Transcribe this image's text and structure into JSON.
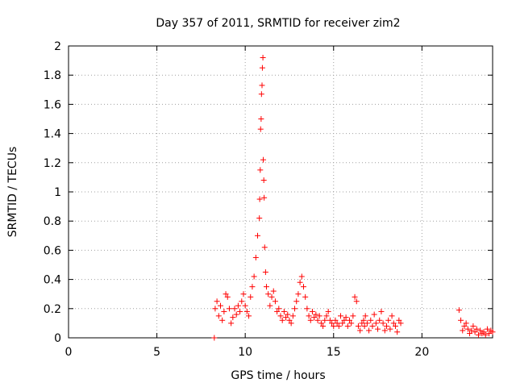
{
  "chart_data": {
    "type": "scatter",
    "title": "Day 357 of 2011, SRMTID for receiver zim2",
    "xlabel": "GPS time / hours",
    "ylabel": "SRMTID / TECUs",
    "xlim": [
      0,
      24
    ],
    "ylim": [
      0,
      2
    ],
    "xticks": [
      0,
      5,
      10,
      15,
      20
    ],
    "xtick_labels": [
      "0",
      "5",
      "10",
      "15",
      "20"
    ],
    "yticks": [
      0,
      0.2,
      0.4,
      0.6,
      0.8,
      1,
      1.2,
      1.4,
      1.6,
      1.8,
      2
    ],
    "ytick_labels": [
      "0",
      "0.2",
      "0.4",
      "0.6",
      "0.8",
      "1",
      "1.2",
      "1.4",
      "1.6",
      "1.8",
      "2"
    ],
    "grid": true,
    "marker": "+",
    "marker_color": "#ff0000",
    "series": [
      {
        "name": "SRMTID",
        "x": [
          8.25,
          8.3,
          8.4,
          8.5,
          8.6,
          8.7,
          8.8,
          8.9,
          9.0,
          9.1,
          9.2,
          9.3,
          9.4,
          9.5,
          9.6,
          9.7,
          9.8,
          9.9,
          10.0,
          10.1,
          10.2,
          10.3,
          10.4,
          10.5,
          10.6,
          10.7,
          10.8,
          10.82,
          10.85,
          10.87,
          10.9,
          10.92,
          10.95,
          10.97,
          11.0,
          11.02,
          11.05,
          11.07,
          11.1,
          11.15,
          11.2,
          11.3,
          11.4,
          11.5,
          11.6,
          11.7,
          11.8,
          11.9,
          12.0,
          12.1,
          12.2,
          12.3,
          12.4,
          12.5,
          12.6,
          12.7,
          12.8,
          12.9,
          13.0,
          13.1,
          13.2,
          13.3,
          13.4,
          13.5,
          13.6,
          13.7,
          13.8,
          13.9,
          14.0,
          14.1,
          14.2,
          14.3,
          14.4,
          14.5,
          14.6,
          14.7,
          14.8,
          14.9,
          15.0,
          15.1,
          15.2,
          15.3,
          15.4,
          15.5,
          15.6,
          15.7,
          15.8,
          15.9,
          16.0,
          16.1,
          16.2,
          16.3,
          16.4,
          16.5,
          16.6,
          16.7,
          16.75,
          16.8,
          16.9,
          17.0,
          17.1,
          17.2,
          17.3,
          17.4,
          17.5,
          17.6,
          17.7,
          17.8,
          17.9,
          18.0,
          18.1,
          18.2,
          18.3,
          18.4,
          18.5,
          18.6,
          18.7,
          18.8,
          22.1,
          22.2,
          22.3,
          22.4,
          22.5,
          22.6,
          22.7,
          22.8,
          22.9,
          23.0,
          23.1,
          23.2,
          23.3,
          23.4,
          23.5,
          23.6,
          23.7,
          23.8,
          23.9,
          24.0
        ],
        "y": [
          0.0,
          0.2,
          0.25,
          0.15,
          0.22,
          0.12,
          0.18,
          0.3,
          0.28,
          0.2,
          0.1,
          0.14,
          0.2,
          0.16,
          0.22,
          0.18,
          0.25,
          0.3,
          0.22,
          0.18,
          0.15,
          0.28,
          0.35,
          0.42,
          0.55,
          0.7,
          0.82,
          0.95,
          1.15,
          1.43,
          1.5,
          1.67,
          1.73,
          1.85,
          1.92,
          1.22,
          1.08,
          0.96,
          0.62,
          0.45,
          0.35,
          0.3,
          0.22,
          0.28,
          0.32,
          0.25,
          0.18,
          0.2,
          0.15,
          0.12,
          0.18,
          0.14,
          0.16,
          0.12,
          0.1,
          0.15,
          0.2,
          0.25,
          0.3,
          0.38,
          0.42,
          0.35,
          0.28,
          0.2,
          0.15,
          0.12,
          0.18,
          0.14,
          0.16,
          0.12,
          0.15,
          0.1,
          0.08,
          0.12,
          0.15,
          0.18,
          0.12,
          0.1,
          0.08,
          0.12,
          0.1,
          0.08,
          0.15,
          0.1,
          0.12,
          0.14,
          0.08,
          0.12,
          0.1,
          0.15,
          0.28,
          0.25,
          0.08,
          0.05,
          0.1,
          0.12,
          0.08,
          0.15,
          0.1,
          0.05,
          0.12,
          0.08,
          0.16,
          0.1,
          0.06,
          0.12,
          0.18,
          0.1,
          0.05,
          0.08,
          0.12,
          0.06,
          0.15,
          0.1,
          0.08,
          0.04,
          0.12,
          0.1,
          0.19,
          0.12,
          0.05,
          0.08,
          0.1,
          0.06,
          0.03,
          0.05,
          0.08,
          0.04,
          0.06,
          0.02,
          0.05,
          0.03,
          0.04,
          0.02,
          0.06,
          0.03,
          0.05,
          0.04
        ]
      }
    ]
  }
}
